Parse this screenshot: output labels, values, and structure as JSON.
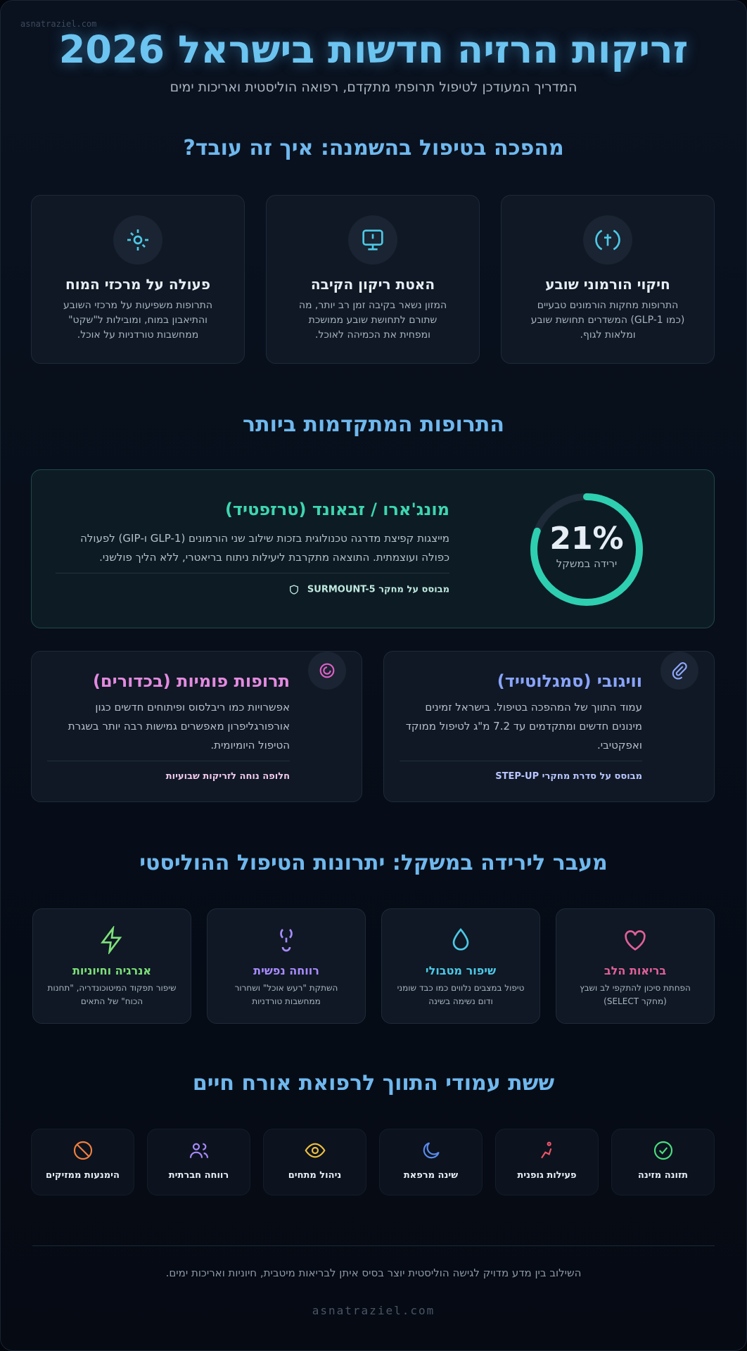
{
  "header": {
    "watermark": "asnatraziel.com",
    "title": "זריקות הרזיה חדשות בישראל 2026",
    "subtitle": "המדריך המעודכן לטיפול תרופתי מתקדם, רפואה הוליסטית ואריכות ימים"
  },
  "sections": [
    {
      "heading": "מהפכה בטיפול בהשמנה: איך זה עובד?",
      "cards": [
        {
          "title": "חיקוי הורמוני שובע",
          "text": "התרופות מחקות הורמונים טבעיים (כמו GLP-1) המשדרים תחושת שובע ומלאות לגוף."
        },
        {
          "title": "האטת ריקון הקיבה",
          "text": "המזון נשאר בקיבה זמן רב יותר, מה שתורם לתחושת שובע ממושכת ומפחית את הכמיהה לאוכל."
        },
        {
          "title": "פעולה על מרכזי המוח",
          "text": "התרופות משפיעות על מרכזי השובע והתיאבון במוח, ומובילות ל\"שקט\" ממחשבות טורדניות על אוכל."
        }
      ]
    },
    {
      "heading": "התרופות המתקדמות ביותר",
      "featured": {
        "title": "מונג'ארו / זבאונד (טרזפטיד)",
        "text": "מייצגות קפיצת מדרגה טכנולוגית בזכות שילוב שני הורמונים (GLP-1 ו-GIP) לפעולה כפולה ועוצמתית. התוצאה מתקרבת ליעילות ניתוח בריאטרי, ללא הליך פולשני.",
        "note": "מבוסס על מחקר SURMOUNT-5",
        "stat": "21%",
        "stat_label": "ירידה במשקל"
      },
      "cards": [
        {
          "title": "וויגובי (סמגלוטייד)",
          "text": "עמוד התווך של המהפכה בטיפול. בישראל זמינים מינונים חדשים ומתקדמים עד 7.2 מ\"ג לטיפול ממוקד ואפקטיבי.",
          "note": "מבוסס על סדרת מחקרי STEP-UP"
        },
        {
          "title": "תרופות פומיות (בכדורים)",
          "text": "אפשרויות כמו ריבלסוס ופיתוחים חדשים כגון אורפורגליפרון מאפשרים גמישות רבה יותר בשגרת הטיפול היומיומית.",
          "note": "חלופה נוחה לזריקות שבועיות"
        }
      ]
    },
    {
      "heading": "מעבר לירידה במשקל: יתרונות הטיפול ההוליסטי",
      "cards": [
        {
          "title": "בריאות הלב",
          "text": "הפחתת סיכון להתקפי לב ושבץ (מחקר SELECT)"
        },
        {
          "title": "שיפור מטבולי",
          "text": "טיפול במצבים נלווים כמו כבד שומני ודום נשימה בשינה"
        },
        {
          "title": "רווחה נפשית",
          "text": "השתקת \"רעש אוכל\" ושחרור ממחשבות טורדניות"
        },
        {
          "title": "אנרגיה וחיוניות",
          "text": "שיפור תפקוד המיטוכונדריה, \"תחנות הכוח\" של התאים"
        }
      ]
    },
    {
      "heading": "ששת עמודי התווך לרפואת אורח חיים",
      "items": [
        "תזונה מזינה",
        "פעילות גופנית",
        "שינה מרפאת",
        "ניהול מתחים",
        "רווחה חברתית",
        "הימנעות ממזיקים"
      ]
    }
  ],
  "footer": {
    "text": "השילוב בין מדע מדויק לגישה הוליסטית יוצר בסיס איתן לבריאות מיטבית, חיוניות ואריכות ימים.",
    "brand": "asnatraziel.com"
  }
}
